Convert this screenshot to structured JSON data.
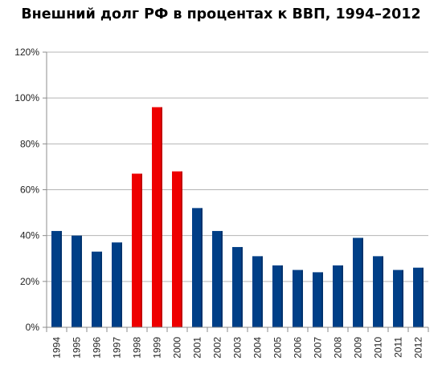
{
  "chart_data": {
    "type": "bar",
    "title": "Внешний долг РФ в процентах к ВВП, 1994–2012",
    "xlabel": "",
    "ylabel": "",
    "categories": [
      "1994",
      "1995",
      "1996",
      "1997",
      "1998",
      "1999",
      "2000",
      "2001",
      "2002",
      "2003",
      "2004",
      "2005",
      "2006",
      "2007",
      "2008",
      "2009",
      "2010",
      "2011",
      "2012"
    ],
    "values": [
      42,
      40,
      33,
      37,
      67,
      96,
      68,
      52,
      42,
      35,
      31,
      27,
      25,
      24,
      27,
      39,
      31,
      25,
      26
    ],
    "highlighted_categories": [
      "1998",
      "1999",
      "2000"
    ],
    "ylim": [
      0,
      120
    ],
    "yticks": [
      0,
      20,
      40,
      60,
      80,
      100,
      120
    ],
    "ytick_labels": [
      "0%",
      "20%",
      "40%",
      "60%",
      "80%",
      "100%",
      "120%"
    ],
    "grid": true,
    "legend": "none",
    "colors": {
      "bar": "#003f87",
      "bar_highlight": "#ee0000",
      "grid": "#b4b4b4",
      "axis": "#8c8c8c"
    }
  }
}
